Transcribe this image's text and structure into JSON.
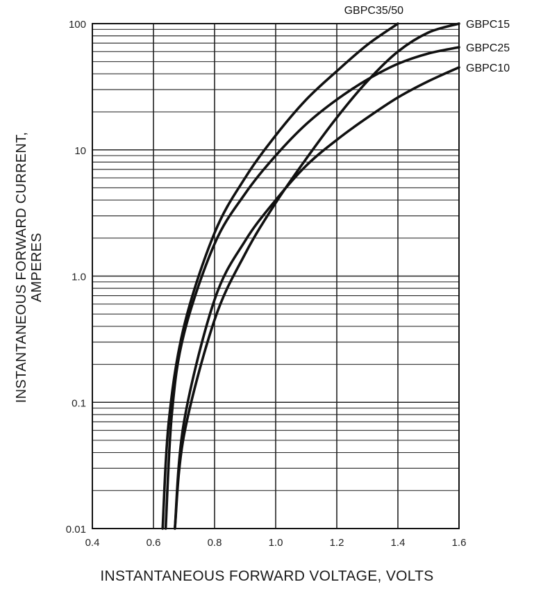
{
  "chart_data": {
    "type": "line",
    "xlabel": "INSTANTANEOUS FORWARD VOLTAGE, VOLTS",
    "ylabel_lines": [
      "INSTANTANEOUS FORWARD CURRENT,",
      "AMPERES"
    ],
    "x_scale": "linear",
    "y_scale": "log",
    "xlim": [
      0.4,
      1.6
    ],
    "ylim": [
      0.01,
      100
    ],
    "x_ticks": [
      "0.4",
      "0.6",
      "0.8",
      "1.0",
      "1.2",
      "1.4",
      "1.6"
    ],
    "y_ticks": [
      "0.01",
      "0.1",
      "1.0",
      "10",
      "100"
    ],
    "grid": true,
    "series": [
      {
        "name": "GBPC35/50",
        "points": [
          [
            0.63,
            0.01
          ],
          [
            0.65,
            0.07
          ],
          [
            0.7,
            0.4
          ],
          [
            0.8,
            2.2
          ],
          [
            0.9,
            6.0
          ],
          [
            1.0,
            13
          ],
          [
            1.1,
            25
          ],
          [
            1.2,
            42
          ],
          [
            1.3,
            68
          ],
          [
            1.4,
            100
          ]
        ]
      },
      {
        "name": "GBPC15",
        "points": [
          [
            0.67,
            0.01
          ],
          [
            0.7,
            0.055
          ],
          [
            0.8,
            0.45
          ],
          [
            0.9,
            1.5
          ],
          [
            1.0,
            3.8
          ],
          [
            1.1,
            8.5
          ],
          [
            1.2,
            18
          ],
          [
            1.3,
            35
          ],
          [
            1.4,
            60
          ],
          [
            1.5,
            85
          ],
          [
            1.6,
            100
          ]
        ]
      },
      {
        "name": "GBPC25",
        "points": [
          [
            0.64,
            0.01
          ],
          [
            0.66,
            0.08
          ],
          [
            0.7,
            0.35
          ],
          [
            0.8,
            1.8
          ],
          [
            0.9,
            4.5
          ],
          [
            1.0,
            9.0
          ],
          [
            1.1,
            16
          ],
          [
            1.2,
            25
          ],
          [
            1.3,
            36
          ],
          [
            1.4,
            48
          ],
          [
            1.5,
            58
          ],
          [
            1.6,
            65
          ]
        ]
      },
      {
        "name": "GBPC10",
        "points": [
          [
            0.67,
            0.01
          ],
          [
            0.7,
            0.07
          ],
          [
            0.8,
            0.65
          ],
          [
            0.9,
            1.9
          ],
          [
            1.0,
            4.0
          ],
          [
            1.1,
            7.5
          ],
          [
            1.2,
            12
          ],
          [
            1.3,
            18
          ],
          [
            1.4,
            26
          ],
          [
            1.5,
            35
          ],
          [
            1.6,
            45
          ]
        ]
      }
    ]
  }
}
